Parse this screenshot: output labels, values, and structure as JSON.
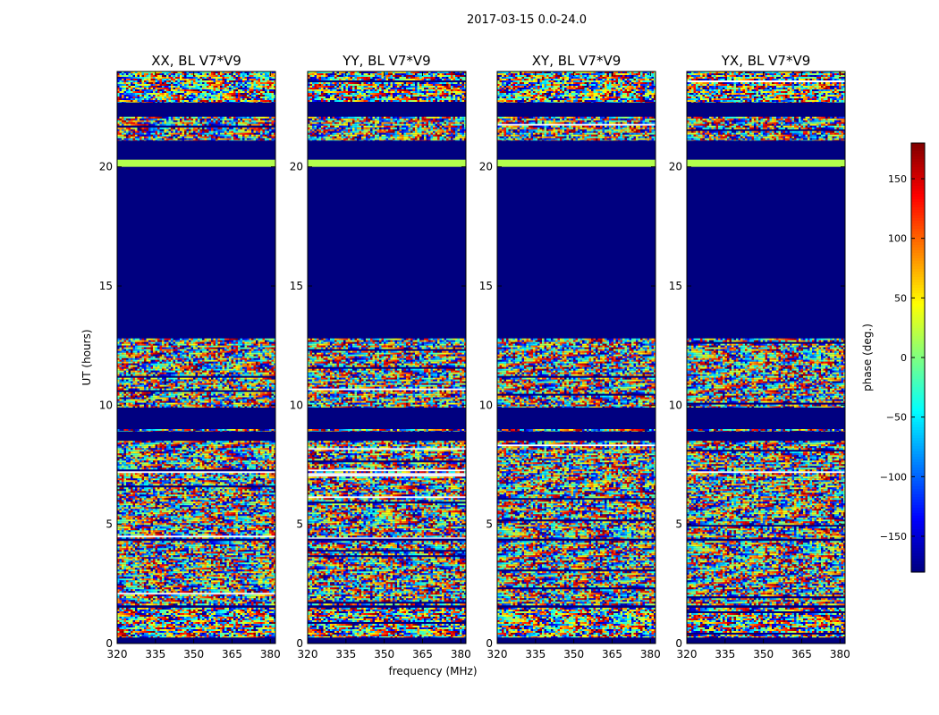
{
  "suptitle": "2017-03-15 0.0-24.0",
  "chart_data": {
    "type": "heatmap",
    "shared": {
      "xlabel": "frequency (MHz)",
      "ylabel": "UT (hours)",
      "xlim": [
        320,
        382
      ],
      "ylim": [
        0,
        24
      ],
      "xticks": [
        320,
        335,
        350,
        365,
        380
      ],
      "yticks": [
        0,
        5,
        10,
        15,
        20
      ],
      "colorbar": {
        "label": "phase (deg.)",
        "range": [
          -180,
          180
        ],
        "ticks": [
          150,
          100,
          50,
          0,
          -50,
          -100,
          -150
        ],
        "tick_labels": [
          "150",
          "100",
          "50",
          "0",
          "−50",
          "−100",
          "−150"
        ],
        "colormap": "jet"
      }
    },
    "panels": [
      {
        "id": "xx",
        "title": "XX, BL V7*V9"
      },
      {
        "id": "yy",
        "title": "YY, BL V7*V9"
      },
      {
        "id": "xy",
        "title": "XY, BL V7*V9"
      },
      {
        "id": "yx",
        "title": "YX, BL V7*V9"
      }
    ],
    "time_bands": [
      {
        "from": 0.0,
        "to": 0.25,
        "state": "flagged"
      },
      {
        "from": 0.25,
        "to": 1.5,
        "state": "noisy"
      },
      {
        "from": 1.5,
        "to": 1.6,
        "state": "flagged"
      },
      {
        "from": 1.6,
        "to": 4.3,
        "state": "noisy"
      },
      {
        "from": 4.3,
        "to": 4.4,
        "state": "flagged"
      },
      {
        "from": 4.4,
        "to": 8.5,
        "state": "noisy"
      },
      {
        "from": 8.5,
        "to": 8.9,
        "state": "flagged"
      },
      {
        "from": 8.9,
        "to": 9.0,
        "state": "noisy"
      },
      {
        "from": 9.0,
        "to": 9.9,
        "state": "flagged"
      },
      {
        "from": 9.9,
        "to": 12.8,
        "state": "noisy"
      },
      {
        "from": 12.8,
        "to": 20.0,
        "state": "flagged"
      },
      {
        "from": 20.0,
        "to": 20.3,
        "state": "line"
      },
      {
        "from": 20.3,
        "to": 21.1,
        "state": "flagged"
      },
      {
        "from": 21.1,
        "to": 22.1,
        "state": "noisy"
      },
      {
        "from": 22.1,
        "to": 22.7,
        "state": "flagged"
      },
      {
        "from": 22.7,
        "to": 24.0,
        "state": "noisy"
      }
    ]
  }
}
